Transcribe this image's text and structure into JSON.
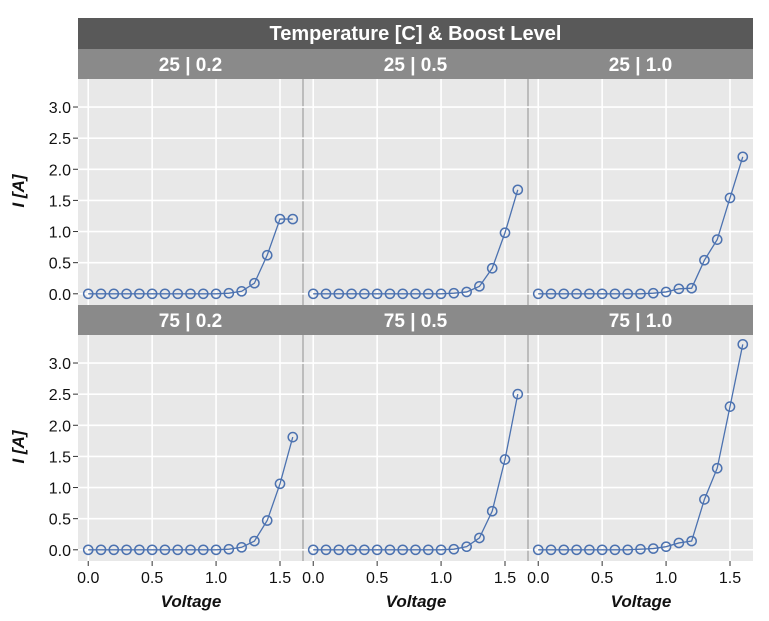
{
  "chart_data": {
    "type": "line",
    "title": "Temperature [C] & Boost Level",
    "xlabel": "Voltage",
    "ylabel": "I [A]",
    "xlim": [
      -0.08,
      1.68
    ],
    "ylim": [
      -0.18,
      3.45
    ],
    "x_ticks": [
      "0.0",
      "0.5",
      "1.0",
      "1.5"
    ],
    "y_ticks": [
      "0.0",
      "0.5",
      "1.0",
      "1.5",
      "2.0",
      "2.5",
      "3.0"
    ],
    "grid": true,
    "marker": "open-circle",
    "line_color": "#4c72b0",
    "x": [
      0.0,
      0.1,
      0.2,
      0.3,
      0.4,
      0.5,
      0.6,
      0.7,
      0.8,
      0.9,
      1.0,
      1.1,
      1.2,
      1.3,
      1.4,
      1.5,
      1.6
    ],
    "panels": [
      {
        "label": "25 | 0.2",
        "values": [
          0,
          0,
          0,
          0,
          0,
          0,
          0,
          0,
          0,
          0,
          0,
          0.01,
          0.04,
          0.17,
          0.62,
          1.2,
          1.2
        ]
      },
      {
        "label": "25 | 0.5",
        "values": [
          0,
          0,
          0,
          0,
          0,
          0,
          0,
          0,
          0,
          0,
          0,
          0.01,
          0.03,
          0.12,
          0.41,
          0.98,
          1.67
        ]
      },
      {
        "label": "25 | 1.0",
        "values": [
          0,
          0,
          0,
          0,
          0,
          0,
          0,
          0,
          0,
          0.01,
          0.03,
          0.08,
          0.09,
          0.54,
          0.87,
          1.54,
          2.2
        ]
      },
      {
        "label": "75 | 0.2",
        "values": [
          0,
          0,
          0,
          0,
          0,
          0,
          0,
          0,
          0,
          0,
          0,
          0.01,
          0.04,
          0.14,
          0.47,
          1.06,
          1.81
        ]
      },
      {
        "label": "75 | 0.5",
        "values": [
          0,
          0,
          0,
          0,
          0,
          0,
          0,
          0,
          0,
          0,
          0,
          0.01,
          0.05,
          0.19,
          0.62,
          1.45,
          2.5
        ]
      },
      {
        "label": "75 | 1.0",
        "values": [
          0,
          0,
          0,
          0,
          0,
          0,
          0,
          0,
          0.01,
          0.02,
          0.05,
          0.11,
          0.14,
          0.81,
          1.31,
          2.3,
          3.3
        ]
      }
    ]
  }
}
